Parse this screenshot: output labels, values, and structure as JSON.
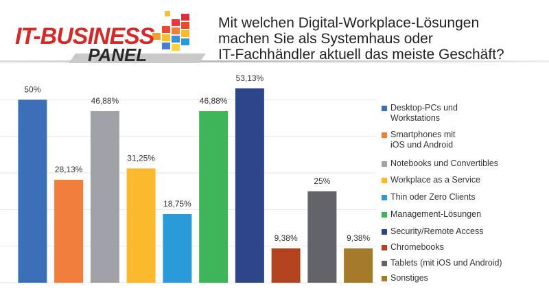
{
  "logo": {
    "top": "IT-BUSINESS",
    "bottom": "PANEL"
  },
  "chart_data": {
    "type": "bar",
    "title": "Mit welchen Digital-Workplace-Lösungen\nmachen Sie als Systemhaus oder\nIT-Fachhändler aktuell das meiste Geschäft?",
    "categories": [
      "Desktop-PCs und\nWorkstations",
      "Smartphones mit\niOS und Android",
      "Notebooks und Convertibles",
      "Workplace as a Service",
      "Thin oder Zero Clients",
      "Management-Lösungen",
      "Security/Remote Access",
      "Chromebooks",
      "Tablets (mit iOS und Android)",
      "Sonstiges"
    ],
    "values": [
      50,
      28.13,
      46.88,
      31.25,
      18.75,
      46.88,
      53.13,
      9.38,
      25,
      9.38
    ],
    "value_labels": [
      "50%",
      "28,13%",
      "46,88%",
      "31,25%",
      "18,75%",
      "46,88%",
      "53,13%",
      "9,38%",
      "25%",
      "9,38%"
    ],
    "colors": [
      "#3a70b8",
      "#f07f3c",
      "#a0a2a6",
      "#fbb92d",
      "#2b9ad8",
      "#3fb55a",
      "#2c4687",
      "#b1441e",
      "#636468",
      "#a47a2b"
    ],
    "ylim": [
      0,
      60
    ],
    "yticks": [
      0,
      10,
      20,
      30,
      40,
      50
    ],
    "grid": true,
    "legend": "right"
  }
}
